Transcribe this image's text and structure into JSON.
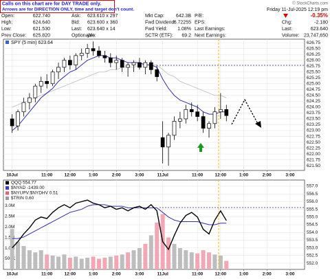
{
  "header": {
    "notes": [
      "Calls on this chart are for DAY TRADE only.",
      "Arrows are for DIRECTION ONLY, time and target don't count."
    ],
    "credit": "© StockCharts.com",
    "datetime": "Friday 11-Jul-2025 12:19 pm",
    "quote": [
      [
        {
          "label": "Open:",
          "value": "622.740"
        },
        {
          "label": "Ask:",
          "value": "623.610 x 297"
        },
        {
          "label": "Mkt Cap:",
          "value": "642.3B"
        },
        {
          "label": "P/E:"
        },
        {
          "value": "-0.35%",
          "color": "#dd0000"
        }
      ],
      [
        {
          "label": "High:",
          "value": "624.640"
        },
        {
          "label": "Bid:",
          "value": "623.600 x 360"
        },
        {
          "label": "Fwd Dividend:",
          "value": "6.72255"
        },
        {
          "label": "EPS:"
        },
        {
          "label": "Chg:",
          "value": "-2.180"
        }
      ],
      [
        {
          "label": "Low:",
          "value": "621.530"
        },
        {
          "label": "Last:",
          "value": "623.640 x 14"
        },
        {
          "label": "Fwd Yield:",
          "value": "1.08%"
        },
        {
          "label": "Last Earnings:"
        },
        {
          "label": "Last:",
          "value": "623.640"
        }
      ],
      [
        {
          "label": "Prev Close:",
          "value": "625.820"
        },
        {
          "label": "Optionable:",
          "value": "yes"
        },
        {
          "label": "SCTR (ETF):",
          "value": "69.2"
        },
        {
          "label": "Next Earnings:"
        },
        {
          "label": "Volume:",
          "value": "23,747,650"
        }
      ]
    ]
  },
  "chart_data": [
    {
      "type": "candlestick",
      "title": "SPY (5 min) 623.64",
      "x": [
        0,
        1,
        2,
        3,
        4,
        5,
        6,
        7,
        8,
        9,
        10,
        11,
        12,
        13,
        14,
        15,
        16,
        17,
        18,
        19,
        20,
        21,
        22,
        23,
        24,
        25,
        26,
        27,
        28,
        29,
        30,
        31,
        32,
        33,
        34,
        35,
        36,
        37
      ],
      "open": [
        623.5,
        623.2,
        623.8,
        624.2,
        624.4,
        624.9,
        625.1,
        625.0,
        625.5,
        625.7,
        626.0,
        625.8,
        626.2,
        626.3,
        626.5,
        626.4,
        626.2,
        626.1,
        625.9,
        626.0,
        625.7,
        625.8,
        625.9,
        625.7,
        625.9,
        625.6,
        622.7,
        622.3,
        622.8,
        623.4,
        623.5,
        623.9,
        623.8,
        623.6,
        623.1,
        623.3,
        623.8,
        623.9
      ],
      "high": [
        623.7,
        623.9,
        624.4,
        624.6,
        625.0,
        625.3,
        625.4,
        625.6,
        625.9,
        626.1,
        626.2,
        626.3,
        626.5,
        626.7,
        626.8,
        626.6,
        626.4,
        626.3,
        626.2,
        626.1,
        625.9,
        626.0,
        626.1,
        626.0,
        626.0,
        625.8,
        623.4,
        622.9,
        623.6,
        623.8,
        624.1,
        624.2,
        624.1,
        623.8,
        623.4,
        624.0,
        624.6,
        624.1
      ],
      "low": [
        622.9,
        623.0,
        623.6,
        623.9,
        624.2,
        624.6,
        624.8,
        624.9,
        625.2,
        625.5,
        625.6,
        625.6,
        626.0,
        626.1,
        626.2,
        626.1,
        625.9,
        625.7,
        625.6,
        625.5,
        625.3,
        625.5,
        625.6,
        625.4,
        625.4,
        625.1,
        621.6,
        621.5,
        622.6,
        623.1,
        623.3,
        623.6,
        623.4,
        622.9,
        622.7,
        623.1,
        623.5,
        623.4
      ],
      "close": [
        623.2,
        623.8,
        624.2,
        624.4,
        624.9,
        625.1,
        625.0,
        625.5,
        625.7,
        626.0,
        625.8,
        626.2,
        626.3,
        626.5,
        626.4,
        626.2,
        626.1,
        625.9,
        626.0,
        625.7,
        625.8,
        625.9,
        625.7,
        625.9,
        625.6,
        625.3,
        622.3,
        622.8,
        623.4,
        623.5,
        623.9,
        623.8,
        623.6,
        623.1,
        623.3,
        623.8,
        623.9,
        623.64
      ],
      "lines": [
        {
          "color": "#c8c8c8",
          "values": [
            624.0,
            624.1,
            624.2,
            624.3,
            624.4,
            624.5,
            624.6,
            624.7,
            624.8,
            624.9,
            625.0,
            625.1,
            625.2,
            625.3,
            625.4,
            625.5,
            625.5,
            625.6,
            625.6,
            625.7,
            625.7,
            625.7,
            625.8,
            625.8,
            625.8,
            625.8,
            625.6,
            625.4,
            625.3,
            625.1,
            625.0,
            624.9,
            624.8,
            624.7,
            624.6,
            624.5,
            624.5,
            624.4
          ]
        },
        {
          "color": "#2f2fb0",
          "values": [
            623.0,
            623.2,
            623.5,
            623.8,
            624.1,
            624.4,
            624.6,
            624.8,
            625.1,
            625.3,
            625.5,
            625.6,
            625.8,
            626.0,
            626.1,
            626.2,
            626.2,
            626.1,
            626.1,
            626.0,
            625.9,
            625.9,
            625.9,
            625.8,
            625.8,
            625.7,
            625.2,
            624.8,
            624.5,
            624.3,
            624.2,
            624.1,
            624.0,
            623.8,
            623.7,
            623.7,
            623.8,
            623.8
          ]
        }
      ],
      "xlim": [
        -1.5,
        50.5
      ],
      "xticks": [
        {
          "value": 0,
          "label": "10Jul"
        },
        {
          "value": 6,
          "label": "11:00"
        },
        {
          "value": 10,
          "label": "12:00"
        },
        {
          "value": 14,
          "label": "1:00"
        },
        {
          "value": 18,
          "label": "2:00"
        },
        {
          "value": 22,
          "label": "3:00"
        },
        {
          "value": 26,
          "label": "11Jul"
        },
        {
          "value": 32,
          "label": "11:00"
        },
        {
          "value": 36,
          "label": "12:00"
        },
        {
          "value": 40,
          "label": "1:00"
        },
        {
          "value": 44,
          "label": "2:00"
        },
        {
          "value": 48,
          "label": "3:00"
        }
      ],
      "ylim": [
        621.3,
        626.9
      ],
      "yticks": [
        {
          "value": 621.5,
          "label": "621.50"
        },
        621.75,
        {
          "value": 622,
          "label": "622.00"
        },
        622.25,
        {
          "value": 622.5,
          "label": "622.50"
        },
        622.75,
        {
          "value": 623,
          "label": "623.00"
        },
        623.25,
        {
          "value": 623.5,
          "label": "623.50"
        },
        623.75,
        {
          "value": 624,
          "label": "624.00"
        },
        624.25,
        {
          "value": 624.5,
          "label": "624.50"
        },
        624.75,
        {
          "value": 625,
          "label": "625.00"
        },
        625.25,
        {
          "value": 625.5,
          "label": "625.50"
        },
        625.75,
        {
          "value": 626,
          "label": "626.00"
        },
        626.25,
        {
          "value": 626.5,
          "label": "626.50"
        },
        626.75
      ],
      "grid": true
    },
    {
      "type": "line",
      "legend": [
        {
          "label": "QQQ 554.77",
          "color": "#000000"
        },
        {
          "label": "$NYAD -1439.00",
          "color": "#3a3ad0"
        },
        {
          "label": "$NYUPV:$NYDHV 0.51",
          "color": "#e0607a"
        },
        {
          "label": "$TRIN 0.60",
          "color": "#999999"
        }
      ],
      "x": [
        0,
        1,
        2,
        3,
        4,
        5,
        6,
        7,
        8,
        9,
        10,
        11,
        12,
        13,
        14,
        15,
        16,
        17,
        18,
        19,
        20,
        21,
        22,
        23,
        24,
        25,
        26,
        27,
        28,
        29,
        30,
        31,
        32,
        33,
        34,
        35,
        36,
        37
      ],
      "series": [
        {
          "color": "#2f2fb0",
          "values": [
            553.6,
            553.6,
            553.7,
            553.9,
            554.1,
            554.3,
            554.5,
            554.7,
            554.9,
            555.1,
            555.3,
            555.4,
            555.5,
            555.7,
            555.8,
            555.8,
            555.8,
            555.7,
            555.7,
            555.7,
            555.6,
            555.6,
            555.6,
            555.6,
            555.6,
            555.6,
            555.3,
            555.0,
            554.8,
            554.7,
            554.7,
            554.7,
            554.7,
            554.6,
            554.5,
            554.5,
            554.6,
            554.6
          ]
        },
        {
          "color": "#000000",
          "values": [
            553.0,
            553.4,
            553.9,
            554.3,
            554.8,
            555.0,
            554.9,
            555.3,
            555.6,
            555.8,
            555.6,
            555.9,
            556.0,
            556.1,
            555.9,
            555.8,
            555.6,
            555.7,
            555.5,
            555.6,
            555.4,
            555.6,
            555.7,
            555.5,
            555.8,
            555.4,
            553.4,
            552.9,
            553.8,
            554.6,
            555.1,
            555.3,
            555.0,
            554.2,
            553.9,
            554.8,
            555.4,
            554.77
          ]
        }
      ],
      "volume": {
        "color": "#bdbdbd",
        "down_color": "#f2a7b5",
        "values": [
          1900000,
          1300000,
          1100000,
          900000,
          800000,
          900000,
          700000,
          650000,
          600000,
          700000,
          550000,
          600000,
          500000,
          550000,
          600000,
          500000,
          550000,
          600000,
          650000,
          700000,
          800000,
          900000,
          1000000,
          1200000,
          1600000,
          2200000,
          2600000,
          1500000,
          1200000,
          1000000,
          900000,
          800000,
          750000,
          900000,
          800000,
          700000,
          650000,
          400000
        ]
      },
      "xlim": [
        -1.5,
        50.5
      ],
      "xticks": [
        {
          "value": 0,
          "label": "10Jul"
        },
        {
          "value": 6,
          "label": "11:00"
        },
        {
          "value": 10,
          "label": "12:00"
        },
        {
          "value": 14,
          "label": "1:00"
        },
        {
          "value": 18,
          "label": "2:00"
        },
        {
          "value": 22,
          "label": "3:00"
        },
        {
          "value": 26,
          "label": "11Jul"
        },
        {
          "value": 32,
          "label": "11:00"
        },
        {
          "value": 36,
          "label": "12:00"
        },
        {
          "value": 40,
          "label": "1:00"
        },
        {
          "value": 44,
          "label": "2:00"
        },
        {
          "value": 48,
          "label": "3:00"
        }
      ],
      "ylim": [
        551.6,
        557.4
      ],
      "yticks": [
        {
          "value": 552,
          "label": "552.0"
        },
        {
          "value": 552.5,
          "label": "552.5"
        },
        {
          "value": 553,
          "label": "553.0"
        },
        {
          "value": 553.5,
          "label": "553.5"
        },
        {
          "value": 554,
          "label": "554.0"
        },
        {
          "value": 554.5,
          "label": "554.5"
        },
        {
          "value": 555,
          "label": "555.0"
        },
        {
          "value": 555.5,
          "label": "555.5"
        },
        {
          "value": 556,
          "label": "556.0"
        },
        {
          "value": 556.5,
          "label": "556.5"
        },
        {
          "value": 557,
          "label": "557.0"
        }
      ],
      "y2lim": [
        0,
        4200000
      ],
      "y2ticks": [
        {
          "value": 500000,
          "label": "500K"
        },
        {
          "value": 1000000,
          "label": "1.0M"
        },
        {
          "value": 1500000,
          "label": "1.5M"
        },
        {
          "value": 2000000,
          "label": "2.0M"
        },
        {
          "value": 2500000,
          "label": "2.5M"
        },
        {
          "value": 3000000,
          "label": "3.0M"
        }
      ],
      "grid": true
    }
  ]
}
